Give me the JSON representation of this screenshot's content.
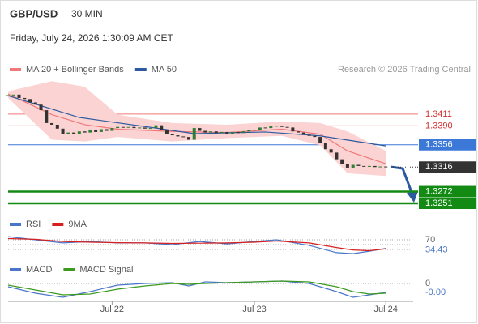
{
  "header": {
    "symbol": "GBP/USD",
    "timeframe": "30 MIN",
    "datetime": "Friday, July 24, 2026 1:30:09 AM CET",
    "credit": "Research © 2026 Trading Central"
  },
  "chart_data": [
    {
      "type": "candlestick",
      "up_color": "#2e7d32",
      "down_color": "#333333",
      "values": [
        1.3445,
        1.3446,
        1.344,
        1.3438,
        1.3432,
        1.3428,
        1.3418,
        1.3395,
        1.3392,
        1.3385,
        1.3375,
        1.3378,
        1.3376,
        1.338,
        1.3378,
        1.3382,
        1.3379,
        1.3384,
        1.3381,
        1.3386,
        1.3388,
        1.3387,
        1.3388,
        1.3386,
        1.3387,
        1.3385,
        1.3386,
        1.3391,
        1.3383,
        1.3375,
        1.3373,
        1.3371,
        1.337,
        1.3365,
        1.3386,
        1.3381,
        1.3378,
        1.338,
        1.3377,
        1.3379,
        1.3376,
        1.3379,
        1.3377,
        1.338,
        1.3382,
        1.3383,
        1.3387,
        1.3386,
        1.3389,
        1.339,
        1.3388,
        1.3387,
        1.338,
        1.3378,
        1.3374,
        1.3372,
        1.337,
        1.336,
        1.3348,
        1.3342,
        1.333,
        1.3322,
        1.3315,
        1.332,
        1.3318,
        1.3317,
        1.3318,
        1.3316,
        1.3317,
        1.3316
      ],
      "xlim": [
        0,
        74
      ],
      "ylim": [
        1.3235,
        1.3453
      ],
      "series": [
        {
          "name": "MA 20 + Bollinger Bands",
          "color": "#f07878",
          "band_color": "#fbd3d3",
          "x": [
            0,
            8,
            14,
            20,
            30,
            40,
            50,
            57,
            62,
            69
          ],
          "values": [
            1.3447,
            1.341,
            1.3392,
            1.3384,
            1.338,
            1.3378,
            1.3384,
            1.3375,
            1.3345,
            1.3322
          ],
          "upper": [
            1.3452,
            1.347,
            1.346,
            1.341,
            1.3395,
            1.3392,
            1.3398,
            1.3395,
            1.338,
            1.3345
          ],
          "lower": [
            1.344,
            1.3365,
            1.3362,
            1.337,
            1.3362,
            1.3368,
            1.3372,
            1.3355,
            1.3305,
            1.33
          ]
        },
        {
          "name": "MA 50",
          "color": "#2c5aa0",
          "x": [
            0,
            13,
            27,
            34,
            47,
            57,
            69
          ],
          "values": [
            1.3444,
            1.3405,
            1.3386,
            1.3376,
            1.3379,
            1.3372,
            1.3354
          ]
        }
      ],
      "levels": [
        {
          "value": 1.3411,
          "color": "#f07878",
          "style": "text"
        },
        {
          "value": 1.339,
          "label": "1.3390",
          "color": "#f07878",
          "style": "text"
        },
        {
          "value": 1.3356,
          "color": "#3b78d8",
          "style": "box"
        },
        {
          "value": 1.3316,
          "color": "#333333",
          "style": "box-dotted"
        },
        {
          "value": 1.3272,
          "color": "#138a13",
          "style": "box-thick"
        },
        {
          "value": 1.3251,
          "color": "#138a13",
          "style": "box-thick"
        }
      ]
    },
    {
      "type": "line",
      "xlim": [
        0,
        74
      ],
      "ylim": [
        0,
        100
      ],
      "yticks": [
        70
      ],
      "levels": [
        30,
        50
      ],
      "series": [
        {
          "name": "RSI",
          "color": "#4a76c9",
          "x": [
            0,
            5,
            10,
            15,
            20,
            25,
            30,
            35,
            40,
            45,
            49,
            55,
            60,
            63,
            66,
            69
          ],
          "values": [
            83,
            70,
            57,
            63,
            57,
            57,
            50,
            63,
            53,
            63,
            70,
            47,
            17,
            13,
            23,
            34.43
          ]
        },
        {
          "name": "9MA",
          "color": "#d62020",
          "x": [
            0,
            5,
            10,
            15,
            20,
            25,
            30,
            35,
            40,
            45,
            49,
            55,
            60,
            63,
            66,
            69
          ],
          "values": [
            75,
            72,
            63,
            60,
            58,
            57,
            55,
            56,
            57,
            60,
            65,
            57,
            38,
            28,
            25,
            33
          ]
        }
      ]
    },
    {
      "type": "line",
      "xlim": [
        0,
        74
      ],
      "ylim": [
        -0.0025,
        0.001
      ],
      "yticks": [
        0
      ],
      "xticks": [
        {
          "value": 19,
          "label": "Jul 22"
        },
        {
          "value": 45,
          "label": "Jul 23"
        },
        {
          "value": 69,
          "label": "Jul 24"
        }
      ],
      "series": [
        {
          "name": "MACD",
          "color": "#4a76c9",
          "x": [
            0,
            5,
            10,
            15,
            20,
            25,
            30,
            33,
            36,
            40,
            45,
            50,
            55,
            60,
            63,
            66,
            69
          ],
          "values": [
            -0.0004,
            -0.0012,
            -0.0017,
            -0.001,
            -0.0002,
            0,
            0.0001,
            -0.0003,
            0.0002,
            0.0001,
            0.0002,
            0.0003,
            0,
            -0.001,
            -0.0017,
            -0.0014,
            -0.0011
          ],
          "value_labels": [
            null,
            null,
            null,
            null,
            null,
            null,
            null,
            null,
            null,
            null,
            null,
            null,
            null,
            null,
            null,
            null,
            "-0.00"
          ]
        },
        {
          "name": "MACD Signal",
          "color": "#3c9a1e",
          "x": [
            0,
            5,
            10,
            15,
            20,
            25,
            30,
            33,
            36,
            40,
            45,
            50,
            55,
            60,
            63,
            66,
            69
          ],
          "values": [
            -0.0002,
            -0.0008,
            -0.0014,
            -0.0013,
            -0.0007,
            -0.0003,
            0,
            -0.0001,
            0,
            0.0001,
            0.0002,
            0.0003,
            0.0002,
            -0.0004,
            -0.001,
            -0.0013,
            -0.0012
          ]
        }
      ]
    }
  ]
}
